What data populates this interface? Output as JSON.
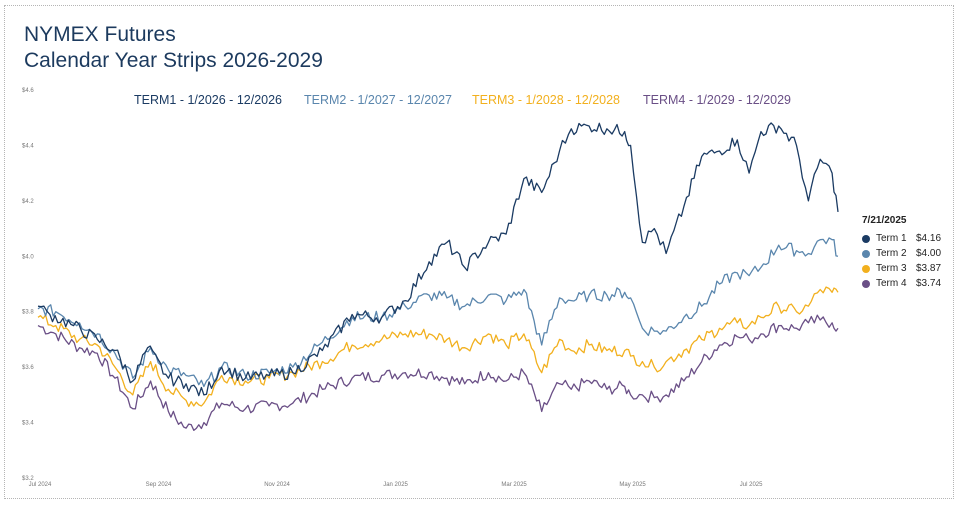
{
  "title_line1": "NYMEX Futures",
  "title_line2": "Calendar Year Strips 2026-2029",
  "chart_data": {
    "type": "line",
    "ylim": [
      3.2,
      4.6
    ],
    "yticks": [
      "$3.2",
      "$3.4",
      "$3.6",
      "$3.8",
      "$4.0",
      "$4.2",
      "$4.4",
      "$4.6"
    ],
    "xticks": [
      "Jul 2024",
      "Sep 2024",
      "Nov 2024",
      "Jan 2025",
      "Mar 2025",
      "May 2025",
      "Jul 2025"
    ],
    "x_range_months": [
      0,
      12.7
    ],
    "grid": false,
    "legend_top": [
      {
        "label": "TERM1 - 1/2026 - 12/2026",
        "color": "#1b3b63"
      },
      {
        "label": "TERM2 - 1/2027 - 12/2027",
        "color": "#5a86ad"
      },
      {
        "label": "TERM3 - 1/2028 - 12/2028",
        "color": "#f2b01e"
      },
      {
        "label": "TERM4 - 1/2029 - 12/2029",
        "color": "#6a4f86"
      }
    ],
    "series": [
      {
        "name": "Term 1",
        "color": "#1b3b63",
        "anchors": [
          [
            0,
            3.82
          ],
          [
            0.2,
            3.79
          ],
          [
            0.6,
            3.75
          ],
          [
            1.0,
            3.7
          ],
          [
            1.3,
            3.66
          ],
          [
            1.6,
            3.55
          ],
          [
            1.85,
            3.67
          ],
          [
            2.2,
            3.56
          ],
          [
            2.5,
            3.54
          ],
          [
            2.8,
            3.5
          ],
          [
            3.1,
            3.6
          ],
          [
            3.5,
            3.56
          ],
          [
            3.9,
            3.57
          ],
          [
            4.3,
            3.58
          ],
          [
            4.8,
            3.66
          ],
          [
            5.3,
            3.79
          ],
          [
            5.8,
            3.78
          ],
          [
            6.2,
            3.84
          ],
          [
            6.6,
            3.98
          ],
          [
            6.9,
            4.05
          ],
          [
            7.2,
            3.96
          ],
          [
            7.6,
            4.05
          ],
          [
            7.9,
            4.08
          ],
          [
            8.2,
            4.28
          ],
          [
            8.5,
            4.23
          ],
          [
            8.8,
            4.38
          ],
          [
            9.0,
            4.46
          ],
          [
            9.3,
            4.47
          ],
          [
            9.6,
            4.46
          ],
          [
            9.9,
            4.45
          ],
          [
            10.0,
            4.4
          ],
          [
            10.2,
            4.05
          ],
          [
            10.4,
            4.1
          ],
          [
            10.6,
            4.01
          ],
          [
            10.9,
            4.18
          ],
          [
            11.2,
            4.36
          ],
          [
            11.5,
            4.38
          ],
          [
            11.8,
            4.42
          ],
          [
            12.0,
            4.3
          ],
          [
            12.2,
            4.45
          ],
          [
            12.5,
            4.47
          ],
          [
            12.8,
            4.4
          ],
          [
            13.0,
            4.2
          ],
          [
            13.2,
            4.35
          ],
          [
            13.4,
            4.3
          ],
          [
            13.5,
            4.16
          ]
        ]
      },
      {
        "name": "Term 2",
        "color": "#5a86ad",
        "anchors": [
          [
            0,
            3.81
          ],
          [
            0.3,
            3.8
          ],
          [
            0.7,
            3.76
          ],
          [
            1.0,
            3.72
          ],
          [
            1.3,
            3.65
          ],
          [
            1.6,
            3.56
          ],
          [
            1.9,
            3.67
          ],
          [
            2.2,
            3.59
          ],
          [
            2.5,
            3.57
          ],
          [
            2.8,
            3.53
          ],
          [
            3.1,
            3.6
          ],
          [
            3.5,
            3.57
          ],
          [
            3.9,
            3.58
          ],
          [
            4.3,
            3.6
          ],
          [
            4.8,
            3.69
          ],
          [
            5.3,
            3.78
          ],
          [
            5.8,
            3.78
          ],
          [
            6.2,
            3.82
          ],
          [
            6.6,
            3.86
          ],
          [
            6.9,
            3.85
          ],
          [
            7.2,
            3.82
          ],
          [
            7.6,
            3.86
          ],
          [
            7.9,
            3.84
          ],
          [
            8.2,
            3.88
          ],
          [
            8.5,
            3.68
          ],
          [
            8.8,
            3.85
          ],
          [
            9.0,
            3.84
          ],
          [
            9.3,
            3.86
          ],
          [
            9.6,
            3.86
          ],
          [
            9.9,
            3.87
          ],
          [
            10.0,
            3.85
          ],
          [
            10.2,
            3.74
          ],
          [
            10.4,
            3.73
          ],
          [
            10.6,
            3.73
          ],
          [
            10.9,
            3.78
          ],
          [
            11.2,
            3.82
          ],
          [
            11.5,
            3.9
          ],
          [
            11.8,
            3.94
          ],
          [
            12.0,
            3.93
          ],
          [
            12.2,
            3.96
          ],
          [
            12.5,
            4.04
          ],
          [
            12.8,
            4.02
          ],
          [
            13.0,
            4.01
          ],
          [
            13.2,
            4.06
          ],
          [
            13.4,
            4.06
          ],
          [
            13.5,
            4.0
          ]
        ]
      },
      {
        "name": "Term 3",
        "color": "#f2b01e",
        "anchors": [
          [
            0,
            3.78
          ],
          [
            0.3,
            3.75
          ],
          [
            0.7,
            3.7
          ],
          [
            1.0,
            3.68
          ],
          [
            1.3,
            3.6
          ],
          [
            1.6,
            3.5
          ],
          [
            1.9,
            3.62
          ],
          [
            2.2,
            3.52
          ],
          [
            2.5,
            3.48
          ],
          [
            2.8,
            3.47
          ],
          [
            3.1,
            3.57
          ],
          [
            3.5,
            3.55
          ],
          [
            3.9,
            3.56
          ],
          [
            4.3,
            3.58
          ],
          [
            4.8,
            3.62
          ],
          [
            5.3,
            3.68
          ],
          [
            5.8,
            3.7
          ],
          [
            6.2,
            3.72
          ],
          [
            6.6,
            3.72
          ],
          [
            6.9,
            3.7
          ],
          [
            7.2,
            3.67
          ],
          [
            7.6,
            3.72
          ],
          [
            7.9,
            3.68
          ],
          [
            8.2,
            3.72
          ],
          [
            8.5,
            3.58
          ],
          [
            8.8,
            3.7
          ],
          [
            9.0,
            3.66
          ],
          [
            9.3,
            3.68
          ],
          [
            9.6,
            3.66
          ],
          [
            9.9,
            3.66
          ],
          [
            10.0,
            3.64
          ],
          [
            10.2,
            3.62
          ],
          [
            10.4,
            3.6
          ],
          [
            10.6,
            3.62
          ],
          [
            10.9,
            3.66
          ],
          [
            11.2,
            3.7
          ],
          [
            11.5,
            3.74
          ],
          [
            11.8,
            3.76
          ],
          [
            12.0,
            3.75
          ],
          [
            12.2,
            3.78
          ],
          [
            12.5,
            3.82
          ],
          [
            12.8,
            3.8
          ],
          [
            13.0,
            3.82
          ],
          [
            13.2,
            3.88
          ],
          [
            13.4,
            3.87
          ],
          [
            13.5,
            3.87
          ]
        ]
      },
      {
        "name": "Term 4",
        "color": "#6a4f86",
        "anchors": [
          [
            0,
            3.75
          ],
          [
            0.3,
            3.72
          ],
          [
            0.7,
            3.67
          ],
          [
            1.0,
            3.65
          ],
          [
            1.3,
            3.56
          ],
          [
            1.6,
            3.45
          ],
          [
            1.9,
            3.55
          ],
          [
            2.2,
            3.44
          ],
          [
            2.5,
            3.38
          ],
          [
            2.8,
            3.4
          ],
          [
            3.1,
            3.47
          ],
          [
            3.5,
            3.45
          ],
          [
            3.9,
            3.46
          ],
          [
            4.3,
            3.47
          ],
          [
            4.8,
            3.52
          ],
          [
            5.3,
            3.56
          ],
          [
            5.8,
            3.57
          ],
          [
            6.2,
            3.58
          ],
          [
            6.6,
            3.58
          ],
          [
            6.9,
            3.56
          ],
          [
            7.2,
            3.54
          ],
          [
            7.6,
            3.58
          ],
          [
            7.9,
            3.55
          ],
          [
            8.2,
            3.58
          ],
          [
            8.5,
            3.44
          ],
          [
            8.8,
            3.54
          ],
          [
            9.0,
            3.52
          ],
          [
            9.3,
            3.55
          ],
          [
            9.6,
            3.52
          ],
          [
            9.9,
            3.53
          ],
          [
            10.0,
            3.5
          ],
          [
            10.2,
            3.5
          ],
          [
            10.4,
            3.49
          ],
          [
            10.6,
            3.5
          ],
          [
            10.9,
            3.55
          ],
          [
            11.2,
            3.62
          ],
          [
            11.5,
            3.68
          ],
          [
            11.8,
            3.71
          ],
          [
            12.0,
            3.7
          ],
          [
            12.2,
            3.72
          ],
          [
            12.5,
            3.75
          ],
          [
            12.8,
            3.74
          ],
          [
            13.0,
            3.76
          ],
          [
            13.2,
            3.77
          ],
          [
            13.4,
            3.76
          ],
          [
            13.5,
            3.74
          ]
        ]
      }
    ],
    "side_legend": {
      "date": "7/21/2025",
      "items": [
        {
          "label": "Term 1",
          "value": "$4.16",
          "color": "#1b3b63"
        },
        {
          "label": "Term 2",
          "value": "$4.00",
          "color": "#5a86ad"
        },
        {
          "label": "Term 3",
          "value": "$3.87",
          "color": "#f2b01e"
        },
        {
          "label": "Term 4",
          "value": "$3.74",
          "color": "#6a4f86"
        }
      ]
    }
  }
}
